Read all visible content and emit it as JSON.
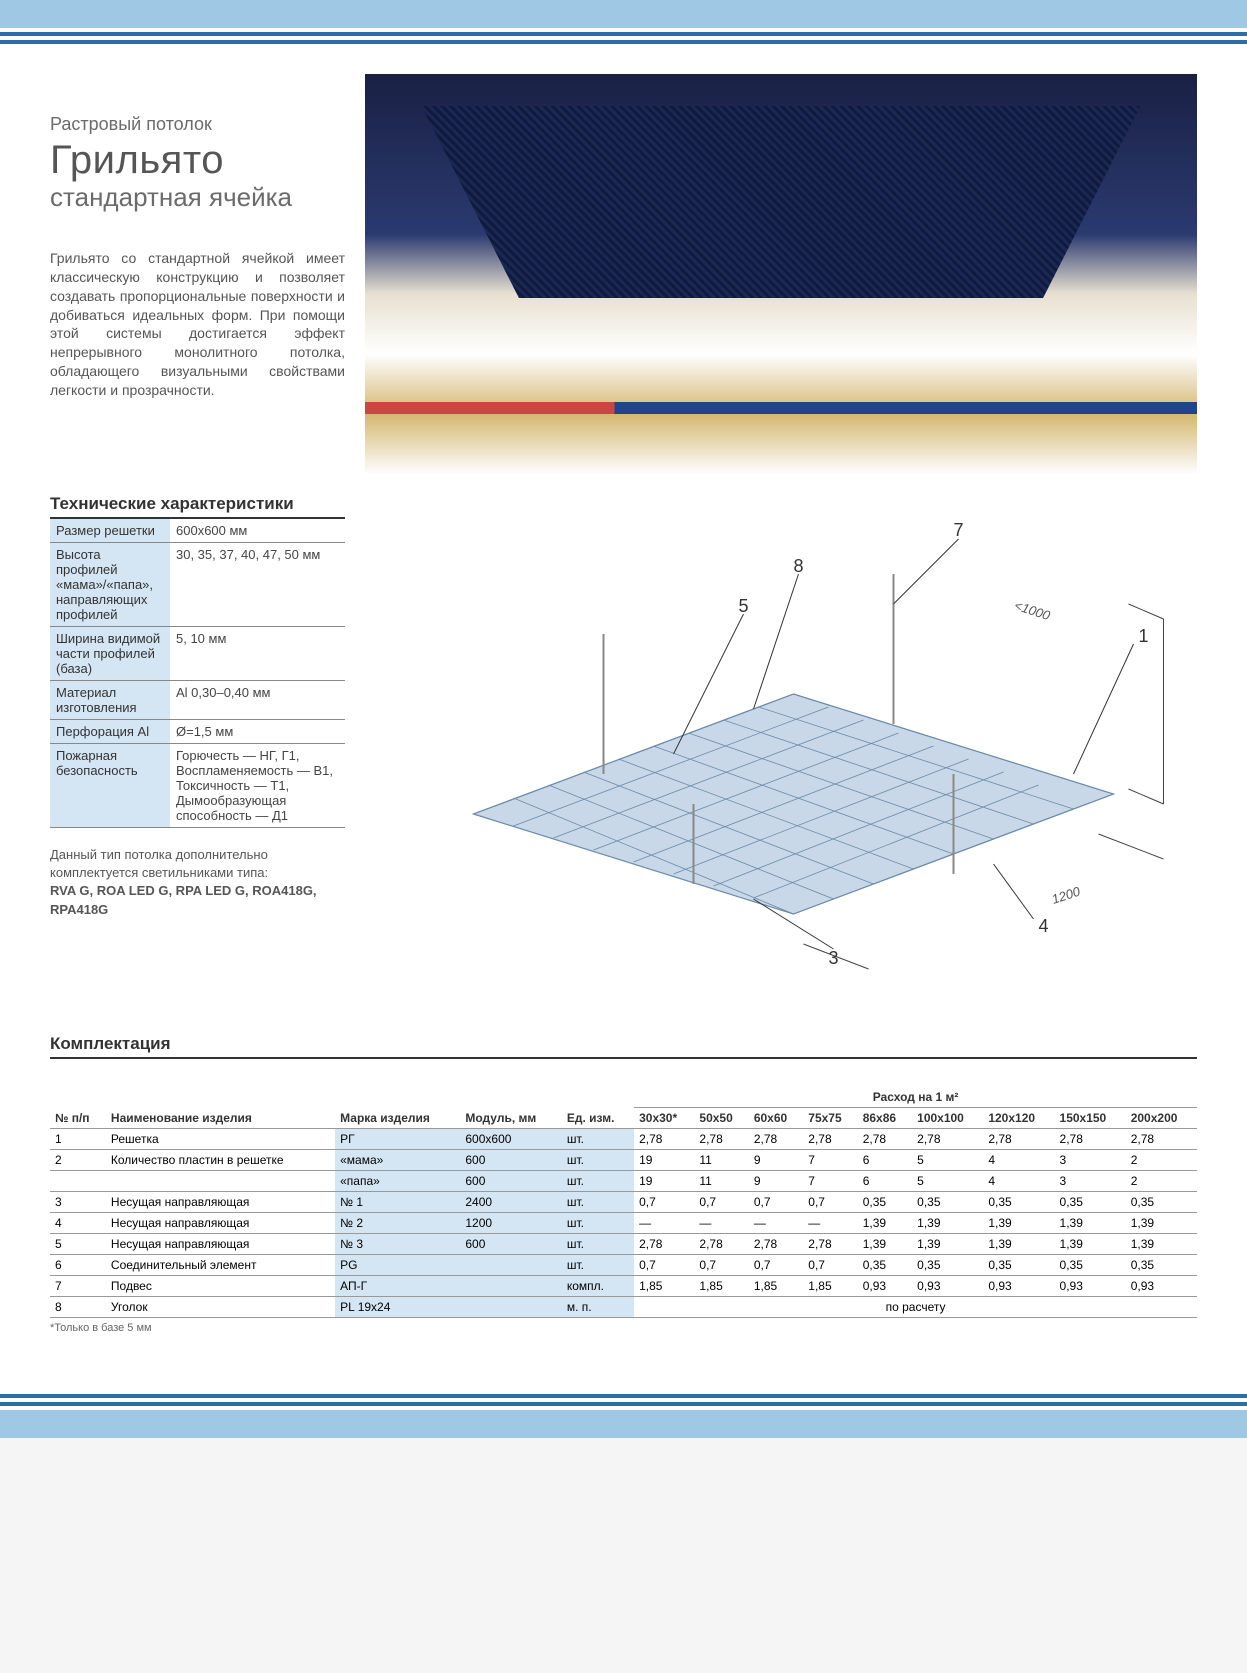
{
  "colors": {
    "bar_light": "#9ec8e3",
    "bar_dark": "#2a6fa8",
    "cell_bg": "#d4e6f3",
    "text": "#555",
    "border": "#888"
  },
  "header": {
    "pretitle": "Растровый потолок",
    "title": "Грильято",
    "subtitle": "стандартная ячейка",
    "description": "Грильято со стандартной ячейкой имеет классическую конструкцию и позволяет создавать пропорциональные поверхности и добиваться идеальных форм. При помощи этой системы достигается эффект непрерывного монолитного потолка, обладающего визуальными свойствами легкости и прозрачности."
  },
  "specs": {
    "heading": "Технические характеристики",
    "rows": [
      {
        "k": "Размер решетки",
        "v": "600х600 мм"
      },
      {
        "k": "Высота профилей «мама»/«папа», направляющих профилей",
        "v": "30, 35, 37, 40, 47, 50 мм"
      },
      {
        "k": "Ширина видимой части профилей (база)",
        "v": "5, 10 мм"
      },
      {
        "k": "Материал изготовления",
        "v": "Al 0,30–0,40 мм"
      },
      {
        "k": "Перфорация Al",
        "v": "Ø=1,5 мм"
      },
      {
        "k": "Пожарная безопасность",
        "v": "Горючесть — НГ, Г1,\nВоспламеняемость — В1,\nТоксичность — Т1,\nДымообразующая способность — Д1"
      }
    ],
    "note_intro": "Данный тип потолка дополнительно комплектуется светильниками типа:",
    "note_bold": "RVA G, ROA LED G, RPA LED G, ROA418G, RPA418G"
  },
  "diagram": {
    "labels": [
      "1",
      "3",
      "4",
      "5",
      "7",
      "8"
    ],
    "dim1": "<1000",
    "dim2": "1200"
  },
  "equip": {
    "heading": "Комплектация",
    "col_num": "№ п/п",
    "col_name": "Наименование изделия",
    "col_brand": "Марка изделия",
    "col_module": "Модуль, мм",
    "col_unit": "Ед. изм.",
    "col_consumption": "Расход на 1 м²",
    "sizes": [
      "30х30*",
      "50х50",
      "60х60",
      "75х75",
      "86х86",
      "100х100",
      "120х120",
      "150х150",
      "200х200"
    ],
    "rows": [
      {
        "n": "1",
        "name": "Решетка",
        "brand": "РГ",
        "mod": "600х600",
        "unit": "шт.",
        "v": [
          "2,78",
          "2,78",
          "2,78",
          "2,78",
          "2,78",
          "2,78",
          "2,78",
          "2,78",
          "2,78"
        ]
      },
      {
        "n": "2",
        "name": "Количество пластин в решетке",
        "brand": "«мама»",
        "mod": "600",
        "unit": "шт.",
        "v": [
          "19",
          "11",
          "9",
          "7",
          "6",
          "5",
          "4",
          "3",
          "2"
        ]
      },
      {
        "n": "",
        "name": "",
        "brand": "«папа»",
        "mod": "600",
        "unit": "шт.",
        "v": [
          "19",
          "11",
          "9",
          "7",
          "6",
          "5",
          "4",
          "3",
          "2"
        ]
      },
      {
        "n": "3",
        "name": "Несущая направляющая",
        "brand": "№ 1",
        "mod": "2400",
        "unit": "шт.",
        "v": [
          "0,7",
          "0,7",
          "0,7",
          "0,7",
          "0,35",
          "0,35",
          "0,35",
          "0,35",
          "0,35"
        ]
      },
      {
        "n": "4",
        "name": "Несущая направляющая",
        "brand": "№ 2",
        "mod": "1200",
        "unit": "шт.",
        "v": [
          "—",
          "—",
          "—",
          "—",
          "1,39",
          "1,39",
          "1,39",
          "1,39",
          "1,39"
        ]
      },
      {
        "n": "5",
        "name": "Несущая направляющая",
        "brand": "№ 3",
        "mod": "600",
        "unit": "шт.",
        "v": [
          "2,78",
          "2,78",
          "2,78",
          "2,78",
          "1,39",
          "1,39",
          "1,39",
          "1,39",
          "1,39"
        ]
      },
      {
        "n": "6",
        "name": "Соединительный элемент",
        "brand": "PG",
        "mod": "",
        "unit": "шт.",
        "v": [
          "0,7",
          "0,7",
          "0,7",
          "0,7",
          "0,35",
          "0,35",
          "0,35",
          "0,35",
          "0,35"
        ]
      },
      {
        "n": "7",
        "name": "Подвес",
        "brand": "АП-Г",
        "mod": "",
        "unit": "компл.",
        "v": [
          "1,85",
          "1,85",
          "1,85",
          "1,85",
          "0,93",
          "0,93",
          "0,93",
          "0,93",
          "0,93"
        ]
      },
      {
        "n": "8",
        "name": "Уголок",
        "brand": "PL 19x24",
        "mod": "",
        "unit": "м. п.",
        "v": [
          "по расчету"
        ],
        "span": 9
      }
    ],
    "footnote": "*Только в базе 5 мм"
  }
}
